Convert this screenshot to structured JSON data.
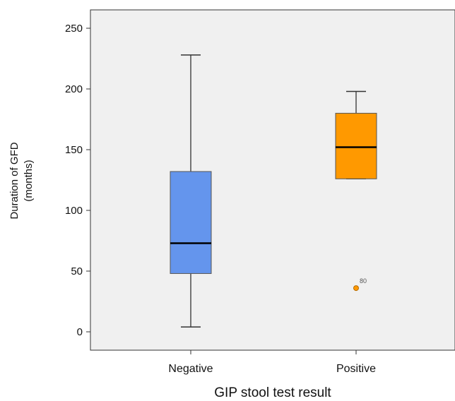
{
  "chart_data": {
    "type": "boxplot",
    "xlabel": "GIP stool test result",
    "ylabel_lines": [
      "Duration of GFD",
      "(months)"
    ],
    "ylim": [
      0,
      250
    ],
    "yticks": [
      0,
      50,
      100,
      150,
      200,
      250
    ],
    "yticks_text": [
      "0",
      "50",
      "100",
      "150",
      "200",
      "250"
    ],
    "grid": false,
    "categories": [
      "Negative",
      "Positive"
    ],
    "boxes": [
      {
        "category": "Negative",
        "whisker_low": 4,
        "q1": 48,
        "median": 73,
        "q3": 132,
        "whisker_high": 228,
        "color": "#6495ed",
        "outliers": []
      },
      {
        "category": "Positive",
        "whisker_low": 126,
        "q1": 126,
        "median": 152,
        "q3": 180,
        "whisker_high": 198,
        "color": "#ff9900",
        "outliers": [
          {
            "value": 36,
            "label": "80"
          }
        ]
      }
    ],
    "colors": {
      "plot_background": "#f0f0f0",
      "axis": "#333333",
      "median": "#000000",
      "outlier_stroke": "#b36b00"
    }
  }
}
